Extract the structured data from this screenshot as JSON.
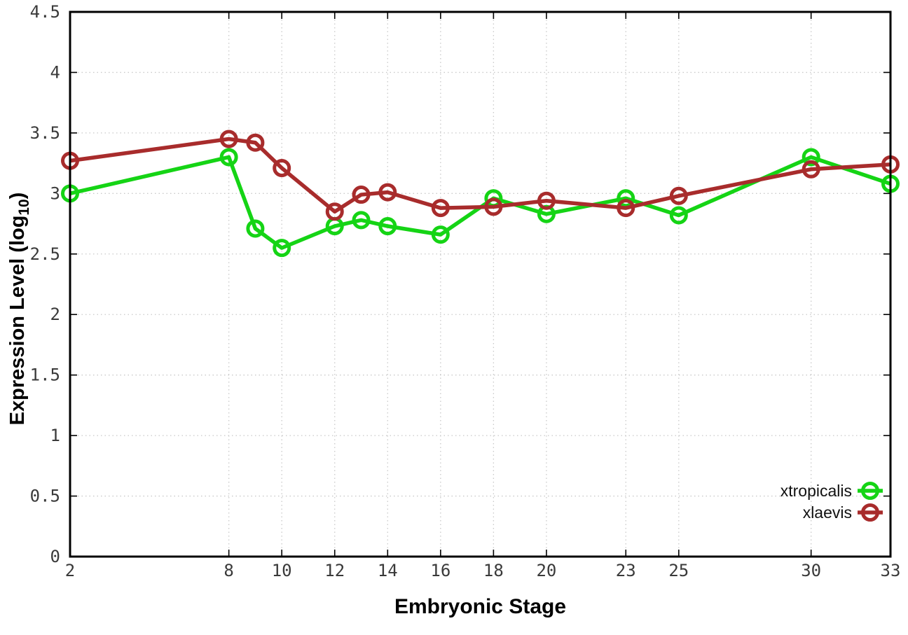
{
  "chart_data": {
    "type": "line",
    "title": "",
    "xlabel": "Embryonic Stage",
    "ylabel_parts": {
      "prefix": "Expression Level (log",
      "sub": "10",
      "suffix": ")"
    },
    "x": [
      2,
      8,
      9,
      10,
      12,
      13,
      14,
      16,
      18,
      20,
      23,
      25,
      30,
      33
    ],
    "xlim": [
      2,
      33
    ],
    "ylim": [
      0,
      4.5
    ],
    "xticks": [
      2,
      8,
      10,
      12,
      14,
      16,
      18,
      20,
      23,
      25,
      30,
      33
    ],
    "xtick_labels": [
      "2",
      "8",
      "10",
      "12",
      "14",
      "16",
      "18",
      "20",
      "23",
      "25",
      "30",
      "33"
    ],
    "yticks": [
      0,
      0.5,
      1,
      1.5,
      2,
      2.5,
      3,
      3.5,
      4,
      4.5
    ],
    "ytick_labels": [
      "0",
      "0.5",
      "1",
      "1.5",
      "2",
      "2.5",
      "3",
      "3.5",
      "4",
      "4.5"
    ],
    "grid": true,
    "legend_position": "bottom-right",
    "series": [
      {
        "name": "xtropicalis",
        "color": "#15d415",
        "values": [
          3.0,
          3.3,
          2.71,
          2.55,
          2.73,
          2.78,
          2.73,
          2.66,
          2.96,
          2.83,
          2.96,
          2.82,
          3.3,
          3.08
        ]
      },
      {
        "name": "xlaevis",
        "color": "#a82c2c",
        "values": [
          3.27,
          3.45,
          3.42,
          3.21,
          2.85,
          2.99,
          3.01,
          2.88,
          2.89,
          2.94,
          2.88,
          2.98,
          3.2,
          3.24
        ]
      }
    ],
    "style_colors": {
      "border": "#000000",
      "grid": "#c9c9c9",
      "tick_text": "#3a3a3a",
      "label_text": "#000000"
    }
  }
}
